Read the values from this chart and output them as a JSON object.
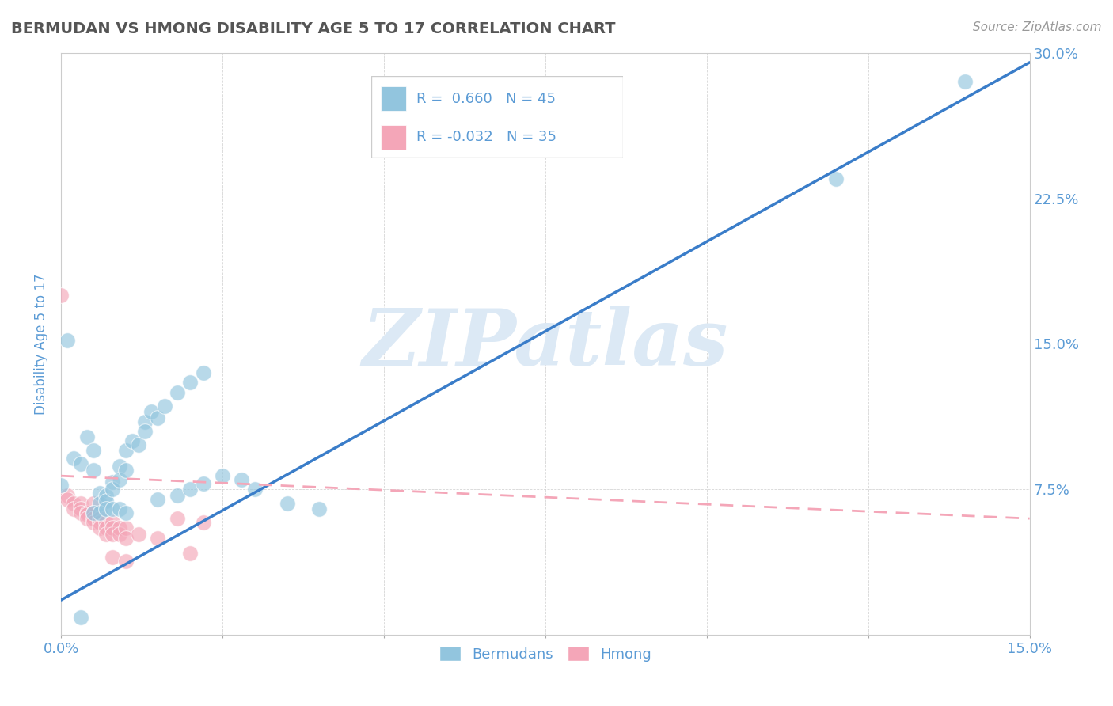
{
  "title": "BERMUDAN VS HMONG DISABILITY AGE 5 TO 17 CORRELATION CHART",
  "source": "Source: ZipAtlas.com",
  "ylabel_label": "Disability Age 5 to 17",
  "xlim": [
    0.0,
    0.15
  ],
  "ylim": [
    0.0,
    0.3
  ],
  "legend_r_blue": "0.660",
  "legend_n_blue": "45",
  "legend_r_pink": "-0.032",
  "legend_n_pink": "35",
  "blue_color": "#92c5de",
  "pink_color": "#f4a6b8",
  "line_blue": "#3a7dc9",
  "line_pink": "#f4a6b8",
  "watermark": "ZIPatlas",
  "watermark_color": "#dce9f5",
  "title_color": "#555555",
  "tick_color": "#5b9bd5",
  "blue_scatter": [
    [
      0.0,
      0.077
    ],
    [
      0.001,
      0.152
    ],
    [
      0.002,
      0.091
    ],
    [
      0.003,
      0.088
    ],
    [
      0.004,
      0.102
    ],
    [
      0.005,
      0.095
    ],
    [
      0.005,
      0.085
    ],
    [
      0.006,
      0.073
    ],
    [
      0.006,
      0.068
    ],
    [
      0.007,
      0.072
    ],
    [
      0.007,
      0.069
    ],
    [
      0.008,
      0.079
    ],
    [
      0.008,
      0.075
    ],
    [
      0.009,
      0.087
    ],
    [
      0.009,
      0.08
    ],
    [
      0.01,
      0.095
    ],
    [
      0.01,
      0.085
    ],
    [
      0.011,
      0.1
    ],
    [
      0.012,
      0.098
    ],
    [
      0.013,
      0.11
    ],
    [
      0.013,
      0.105
    ],
    [
      0.014,
      0.115
    ],
    [
      0.015,
      0.112
    ],
    [
      0.016,
      0.118
    ],
    [
      0.018,
      0.125
    ],
    [
      0.02,
      0.13
    ],
    [
      0.022,
      0.135
    ],
    [
      0.005,
      0.063
    ],
    [
      0.006,
      0.063
    ],
    [
      0.007,
      0.065
    ],
    [
      0.008,
      0.065
    ],
    [
      0.009,
      0.065
    ],
    [
      0.01,
      0.063
    ],
    [
      0.003,
      0.009
    ],
    [
      0.015,
      0.07
    ],
    [
      0.018,
      0.072
    ],
    [
      0.02,
      0.075
    ],
    [
      0.022,
      0.078
    ],
    [
      0.025,
      0.082
    ],
    [
      0.028,
      0.08
    ],
    [
      0.03,
      0.075
    ],
    [
      0.035,
      0.068
    ],
    [
      0.04,
      0.065
    ],
    [
      0.12,
      0.235
    ],
    [
      0.14,
      0.285
    ]
  ],
  "pink_scatter": [
    [
      0.0,
      0.175
    ],
    [
      0.001,
      0.072
    ],
    [
      0.001,
      0.07
    ],
    [
      0.002,
      0.068
    ],
    [
      0.002,
      0.065
    ],
    [
      0.003,
      0.068
    ],
    [
      0.003,
      0.065
    ],
    [
      0.003,
      0.063
    ],
    [
      0.004,
      0.063
    ],
    [
      0.004,
      0.062
    ],
    [
      0.004,
      0.06
    ],
    [
      0.005,
      0.068
    ],
    [
      0.005,
      0.063
    ],
    [
      0.005,
      0.06
    ],
    [
      0.005,
      0.058
    ],
    [
      0.006,
      0.06
    ],
    [
      0.006,
      0.058
    ],
    [
      0.006,
      0.055
    ],
    [
      0.007,
      0.058
    ],
    [
      0.007,
      0.055
    ],
    [
      0.007,
      0.052
    ],
    [
      0.008,
      0.058
    ],
    [
      0.008,
      0.055
    ],
    [
      0.008,
      0.052
    ],
    [
      0.009,
      0.055
    ],
    [
      0.009,
      0.052
    ],
    [
      0.01,
      0.055
    ],
    [
      0.01,
      0.05
    ],
    [
      0.012,
      0.052
    ],
    [
      0.015,
      0.05
    ],
    [
      0.018,
      0.06
    ],
    [
      0.022,
      0.058
    ],
    [
      0.008,
      0.04
    ],
    [
      0.01,
      0.038
    ],
    [
      0.02,
      0.042
    ]
  ],
  "blue_line_x": [
    0.0,
    0.15
  ],
  "blue_line_y": [
    0.018,
    0.295
  ],
  "pink_line_x": [
    0.0,
    0.15
  ],
  "pink_line_y": [
    0.082,
    0.06
  ]
}
